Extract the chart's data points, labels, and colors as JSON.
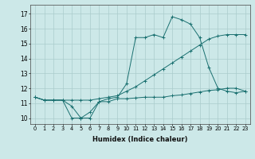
{
  "xlabel": "Humidex (Indice chaleur)",
  "bg_color": "#cce8e8",
  "grid_color": "#aacccc",
  "line_color": "#1a7070",
  "xlim": [
    -0.5,
    23.5
  ],
  "ylim": [
    9.6,
    17.6
  ],
  "yticks": [
    10,
    11,
    12,
    13,
    14,
    15,
    16,
    17
  ],
  "xticks": [
    0,
    1,
    2,
    3,
    4,
    5,
    6,
    7,
    8,
    9,
    10,
    11,
    12,
    13,
    14,
    15,
    16,
    17,
    18,
    19,
    20,
    21,
    22,
    23
  ],
  "line1_x": [
    0,
    1,
    2,
    3,
    4,
    5,
    6,
    7,
    8,
    9,
    10,
    11,
    12,
    13,
    14,
    15,
    16,
    17,
    18,
    19,
    20,
    21,
    22,
    23
  ],
  "line1_y": [
    11.4,
    11.2,
    11.2,
    11.2,
    10.0,
    10.0,
    10.4,
    11.1,
    11.1,
    11.3,
    11.3,
    11.35,
    11.4,
    11.4,
    11.4,
    11.5,
    11.55,
    11.65,
    11.75,
    11.85,
    11.9,
    12.0,
    12.0,
    11.8
  ],
  "line2_x": [
    0,
    1,
    2,
    3,
    4,
    5,
    6,
    7,
    8,
    9,
    10,
    11,
    12,
    13,
    14,
    15,
    16,
    17,
    18,
    19,
    20,
    21,
    22,
    23
  ],
  "line2_y": [
    11.4,
    11.2,
    11.2,
    11.2,
    11.2,
    11.2,
    11.2,
    11.3,
    11.4,
    11.5,
    11.8,
    12.1,
    12.5,
    12.9,
    13.3,
    13.7,
    14.1,
    14.5,
    14.9,
    15.3,
    15.5,
    15.6,
    15.6,
    15.6
  ],
  "line3_x": [
    0,
    1,
    2,
    3,
    4,
    5,
    6,
    7,
    8,
    9,
    10,
    11,
    12,
    13,
    14,
    15,
    16,
    17,
    18,
    19,
    20,
    21,
    22,
    23
  ],
  "line3_y": [
    11.4,
    11.2,
    11.2,
    11.2,
    10.8,
    10.0,
    10.0,
    11.1,
    11.3,
    11.4,
    12.3,
    15.4,
    15.4,
    15.6,
    15.4,
    16.8,
    16.6,
    16.3,
    15.4,
    13.4,
    12.0,
    11.8,
    11.7,
    11.8
  ]
}
